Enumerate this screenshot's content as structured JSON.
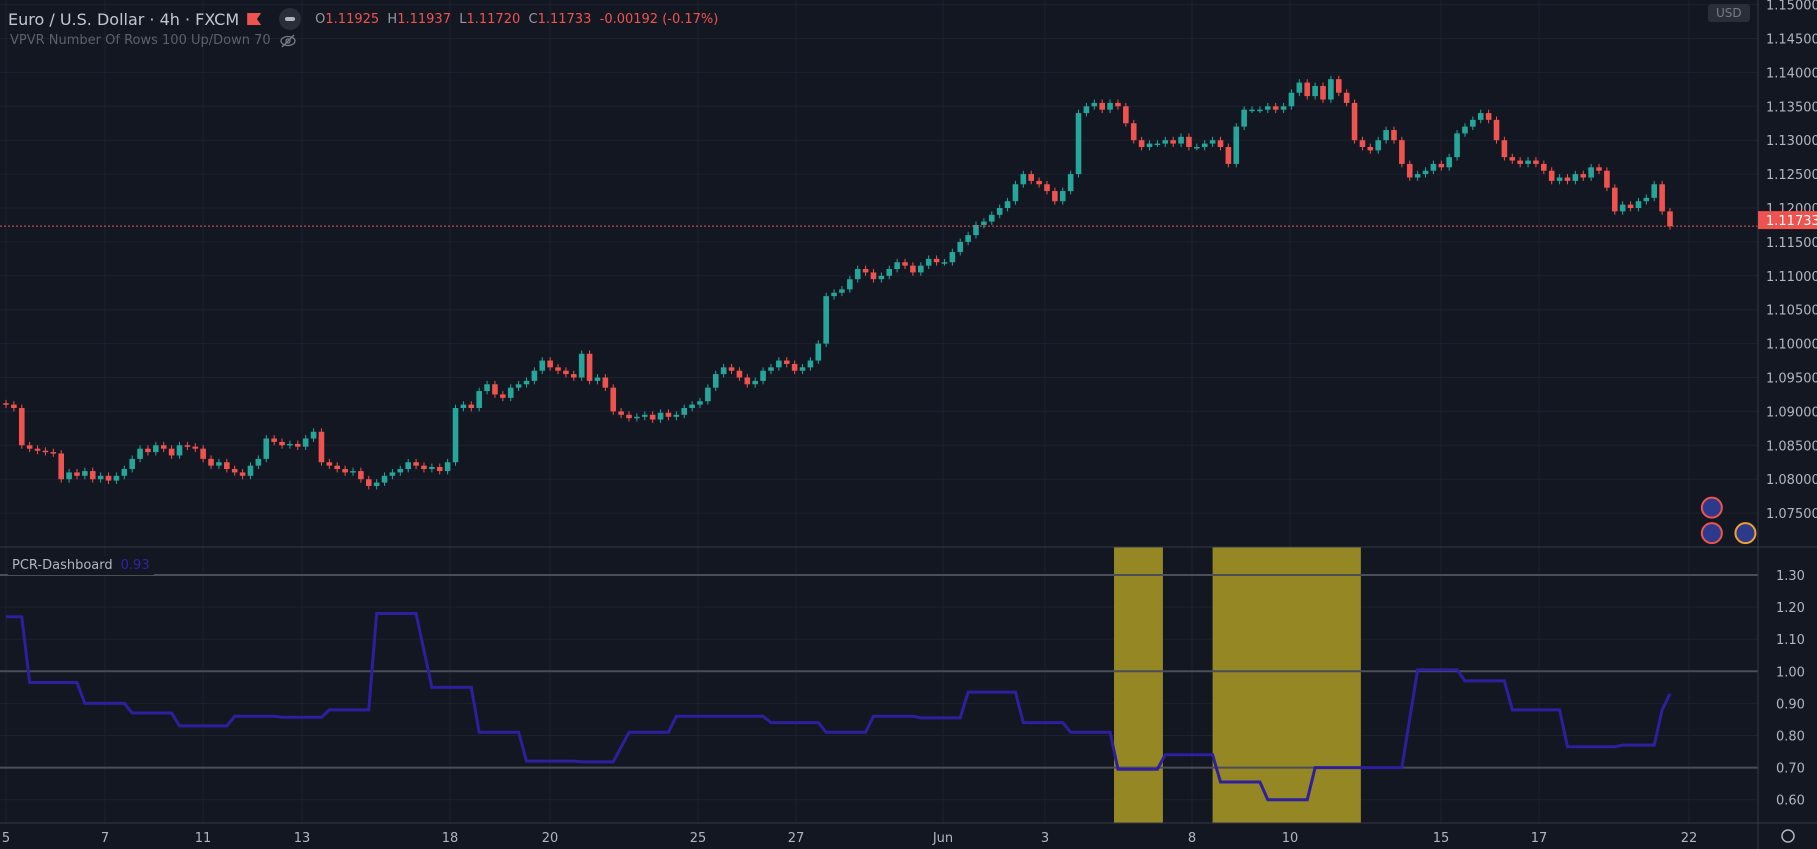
{
  "header": {
    "symbol_title": "Euro / U.S. Dollar · 4h · FXCM",
    "ohlc": {
      "o_label": "O",
      "o": "1.11925",
      "h_label": "H",
      "h": "1.11937",
      "l_label": "L",
      "l": "1.11720",
      "c_label": "C",
      "c": "1.11733",
      "change": "-0.00192 (-0.17%)"
    },
    "vpvr": "VPVR Number Of Rows 100 Up/Down 70",
    "currency": "USD"
  },
  "indicator": {
    "name": "PCR-Dashboard",
    "value": "0.93"
  },
  "colors": {
    "background": "#131722",
    "grid": "#1c2030",
    "up": "#26a69a",
    "down": "#ef5350",
    "pcr_line": "#2d1f9e",
    "highlight": "#968725",
    "last_price": "#ef5350"
  },
  "chart_data": [
    {
      "type": "candlestick",
      "title": "Euro / U.S. Dollar · 4h · FXCM",
      "ylim": [
        1.07,
        1.15
      ],
      "y_ticks": [
        "1.07500",
        "1.08000",
        "1.08500",
        "1.09000",
        "1.09500",
        "1.10000",
        "1.10500",
        "1.11000",
        "1.11500",
        "1.12000",
        "1.12500",
        "1.13000",
        "1.13500",
        "1.14000",
        "1.14500",
        "1.15000"
      ],
      "x_ticks": [
        "5",
        "7",
        "11",
        "13",
        "18",
        "20",
        "25",
        "27",
        "Jun",
        "3",
        "8",
        "10",
        "15",
        "17",
        "22"
      ],
      "last_price": "1.11733",
      "first_open": 1.0912,
      "close": [
        1.091,
        1.0905,
        1.085,
        1.0845,
        1.0842,
        1.084,
        1.0838,
        1.08,
        1.081,
        1.0805,
        1.0812,
        1.08,
        1.0805,
        1.0798,
        1.0805,
        1.0815,
        1.083,
        1.0845,
        1.084,
        1.085,
        1.0845,
        1.0835,
        1.085,
        1.0848,
        1.0845,
        1.083,
        1.082,
        1.0825,
        1.0815,
        1.081,
        1.0805,
        1.082,
        1.083,
        1.086,
        1.0855,
        1.085,
        1.0852,
        1.0848,
        1.086,
        1.087,
        1.0825,
        1.082,
        1.0815,
        1.081,
        1.0812,
        1.08,
        1.079,
        1.0795,
        1.0805,
        1.081,
        1.0815,
        1.0825,
        1.082,
        1.0815,
        1.0818,
        1.0812,
        1.0825,
        1.0905,
        1.091,
        1.0905,
        1.093,
        1.094,
        1.0925,
        1.092,
        1.0935,
        1.094,
        1.0945,
        1.096,
        1.0975,
        1.0965,
        1.096,
        1.0955,
        1.095,
        1.0985,
        1.0945,
        1.095,
        1.0935,
        1.09,
        1.0895,
        1.089,
        1.0892,
        1.0895,
        1.0888,
        1.0898,
        1.0892,
        1.0895,
        1.0905,
        1.091,
        1.0915,
        1.0935,
        1.0955,
        1.0965,
        1.096,
        1.095,
        1.094,
        1.0945,
        1.096,
        1.0965,
        1.0975,
        1.097,
        1.096,
        1.0965,
        1.0975,
        1.1,
        1.107,
        1.1075,
        1.108,
        1.1095,
        1.111,
        1.1105,
        1.1095,
        1.11,
        1.111,
        1.112,
        1.1115,
        1.1105,
        1.1115,
        1.1125,
        1.112,
        1.112,
        1.1135,
        1.115,
        1.116,
        1.1175,
        1.118,
        1.119,
        1.12,
        1.121,
        1.1235,
        1.125,
        1.124,
        1.1235,
        1.1225,
        1.121,
        1.1225,
        1.125,
        1.134,
        1.135,
        1.1355,
        1.1345,
        1.1355,
        1.135,
        1.1325,
        1.13,
        1.129,
        1.1295,
        1.1295,
        1.13,
        1.1295,
        1.1305,
        1.129,
        1.129,
        1.1295,
        1.13,
        1.129,
        1.1265,
        1.132,
        1.1345,
        1.1345,
        1.1345,
        1.135,
        1.1345,
        1.135,
        1.137,
        1.1385,
        1.1365,
        1.138,
        1.136,
        1.139,
        1.137,
        1.1355,
        1.13,
        1.129,
        1.1285,
        1.13,
        1.1315,
        1.13,
        1.1265,
        1.1245,
        1.125,
        1.1255,
        1.1265,
        1.126,
        1.1275,
        1.131,
        1.132,
        1.133,
        1.134,
        1.133,
        1.13,
        1.1275,
        1.127,
        1.1265,
        1.127,
        1.1265,
        1.1255,
        1.124,
        1.1245,
        1.124,
        1.125,
        1.1245,
        1.126,
        1.1255,
        1.123,
        1.1195,
        1.1205,
        1.12,
        1.121,
        1.1215,
        1.1235,
        1.1195,
        1.1173
      ]
    },
    {
      "type": "line",
      "title": "PCR-Dashboard",
      "ylim": [
        0.55,
        1.35
      ],
      "y_ticks": [
        "0.60",
        "0.70",
        "0.80",
        "0.90",
        "1.00",
        "1.10",
        "1.20",
        "1.30"
      ],
      "levels": [
        0.7,
        1.0,
        1.3
      ],
      "points": [
        [
          0,
          1.17
        ],
        [
          2,
          1.17
        ],
        [
          3,
          0.965
        ],
        [
          9,
          0.965
        ],
        [
          10,
          0.9
        ],
        [
          15,
          0.9
        ],
        [
          16,
          0.87
        ],
        [
          21,
          0.87
        ],
        [
          22,
          0.83
        ],
        [
          28,
          0.83
        ],
        [
          29,
          0.86
        ],
        [
          34,
          0.86
        ],
        [
          35,
          0.857
        ],
        [
          40,
          0.857
        ],
        [
          41,
          0.88
        ],
        [
          46,
          0.88
        ],
        [
          47,
          1.18
        ],
        [
          52,
          1.18
        ],
        [
          54,
          0.95
        ],
        [
          59,
          0.95
        ],
        [
          60,
          0.81
        ],
        [
          65,
          0.81
        ],
        [
          66,
          0.72
        ],
        [
          72,
          0.72
        ],
        [
          73,
          0.718
        ],
        [
          77,
          0.718
        ],
        [
          79,
          0.81
        ],
        [
          84,
          0.81
        ],
        [
          85,
          0.86
        ],
        [
          96,
          0.86
        ],
        [
          97,
          0.84
        ],
        [
          103,
          0.84
        ],
        [
          104,
          0.81
        ],
        [
          109,
          0.81
        ],
        [
          110,
          0.86
        ],
        [
          115,
          0.86
        ],
        [
          116,
          0.855
        ],
        [
          121,
          0.855
        ],
        [
          122,
          0.935
        ],
        [
          128,
          0.935
        ],
        [
          129,
          0.84
        ],
        [
          134,
          0.84
        ],
        [
          135,
          0.81
        ],
        [
          140,
          0.81
        ],
        [
          141,
          0.695
        ],
        [
          146,
          0.695
        ],
        [
          147,
          0.74
        ],
        [
          153,
          0.74
        ],
        [
          154,
          0.655
        ],
        [
          159,
          0.655
        ],
        [
          160,
          0.6
        ],
        [
          165,
          0.6
        ],
        [
          166,
          0.7
        ],
        [
          177,
          0.7
        ],
        [
          179,
          1.005
        ],
        [
          184,
          1.005
        ],
        [
          185,
          0.97
        ],
        [
          190,
          0.97
        ],
        [
          191,
          0.88
        ],
        [
          197,
          0.88
        ],
        [
          198,
          0.765
        ],
        [
          204,
          0.765
        ],
        [
          205,
          0.77
        ],
        [
          209,
          0.77
        ],
        [
          210,
          0.88
        ],
        [
          211,
          0.93
        ]
      ],
      "highlight_ranges": [
        [
          140.5,
          146.7
        ],
        [
          153,
          171.8
        ]
      ]
    }
  ]
}
